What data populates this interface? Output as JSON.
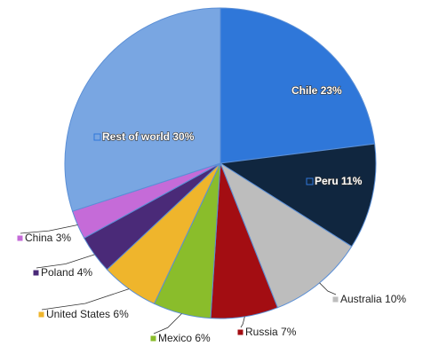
{
  "chart_data": {
    "type": "pie",
    "categories": [
      "Chile",
      "Peru",
      "Australia",
      "Russia",
      "Mexico",
      "United States",
      "Poland",
      "China",
      "Rest of world"
    ],
    "values": [
      23,
      11,
      10,
      7,
      6,
      6,
      4,
      3,
      30
    ],
    "value_labels": [
      "23%",
      "11%",
      "10%",
      "7%",
      "6%",
      "6%",
      "4%",
      "3%",
      "30%"
    ],
    "colors": [
      "#2f77d9",
      "#10263f",
      "#bdbdbd",
      "#a30d12",
      "#8abd2b",
      "#efb52c",
      "#4a2a78",
      "#c56bd8",
      "#79a6e2"
    ]
  }
}
